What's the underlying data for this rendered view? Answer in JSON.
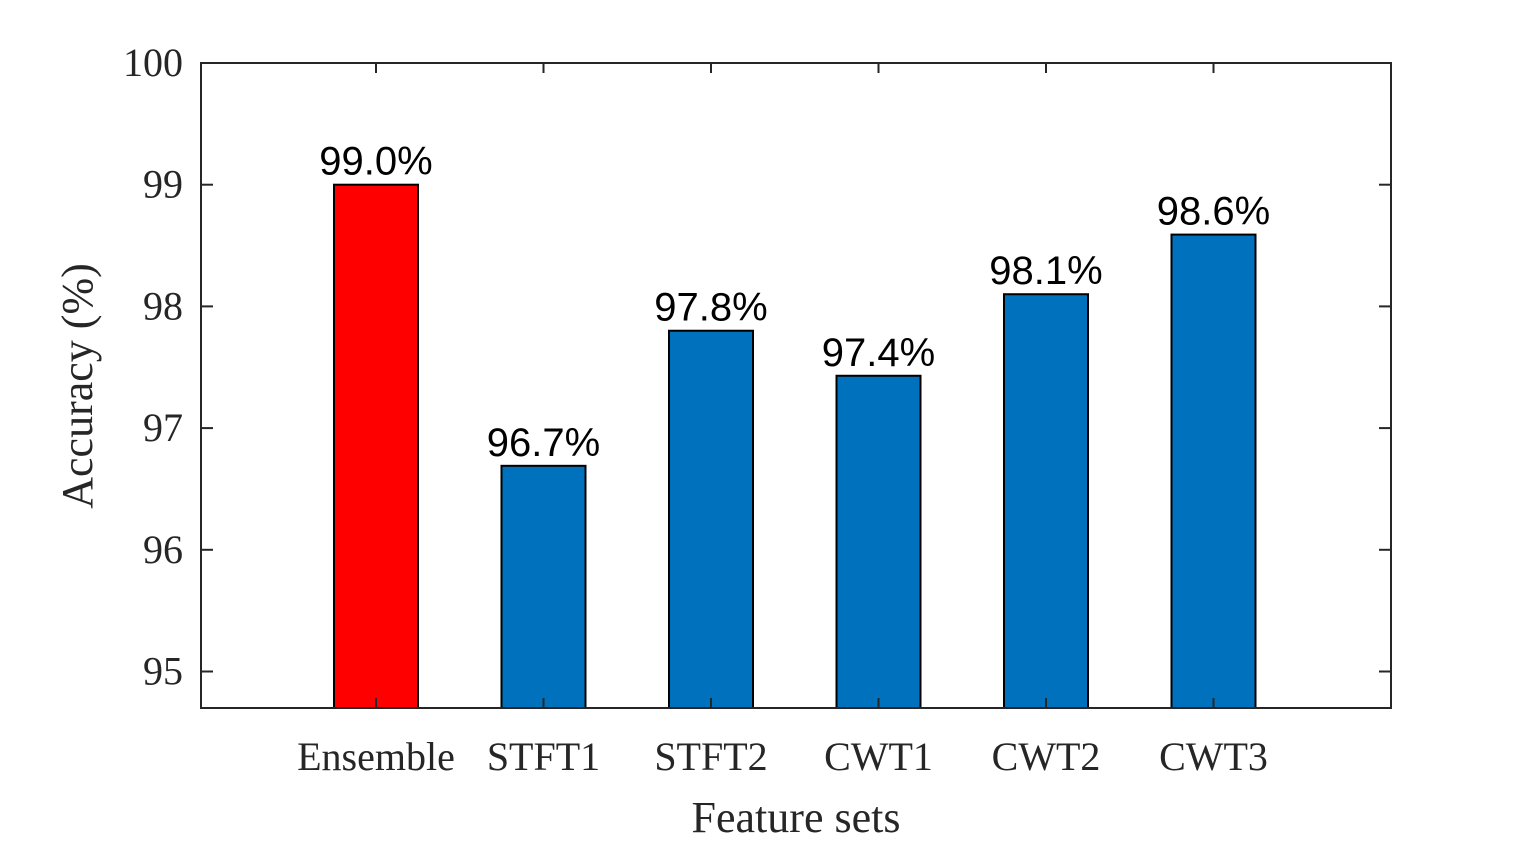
{
  "chart_data": {
    "type": "bar",
    "categories": [
      "Ensemble",
      "STFT1",
      "STFT2",
      "CWT1",
      "CWT2",
      "CWT3"
    ],
    "values": [
      99.0,
      96.69,
      97.8,
      97.43,
      98.1,
      98.59
    ],
    "data_labels": [
      "99.0%",
      "96.7%",
      "97.8%",
      "97.4%",
      "98.1%",
      "98.6%"
    ],
    "colors": [
      "#ff0000",
      "#0072bd",
      "#0072bd",
      "#0072bd",
      "#0072bd",
      "#0072bd"
    ],
    "title": "",
    "xlabel": "Feature sets",
    "ylabel": "Accuracy (%)",
    "ylim": [
      94.7,
      100
    ],
    "yticks": [
      95,
      96,
      97,
      98,
      99,
      100
    ],
    "grid": false
  }
}
